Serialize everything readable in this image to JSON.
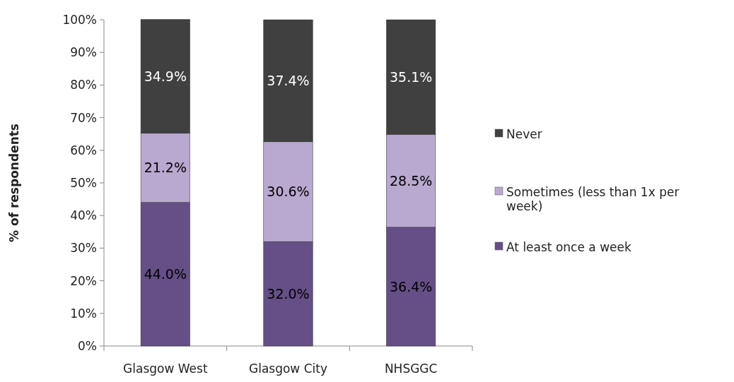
{
  "chart_data": {
    "type": "bar",
    "stacked": true,
    "ylabel": "% of respondents",
    "categories": [
      "Glasgow West",
      "Glasgow City",
      "NHSGGC"
    ],
    "series": [
      {
        "name": "At least once a week",
        "color": "#654f86",
        "values": [
          44.0,
          32.0,
          36.4
        ],
        "value_labels": [
          "44.0%",
          "32.0%",
          "36.4%"
        ]
      },
      {
        "name": "Sometimes (less than 1x per week)",
        "color": "#b9a8cf",
        "values": [
          21.2,
          30.6,
          28.5
        ],
        "value_labels": [
          "21.2%",
          "30.6%",
          "28.5%"
        ]
      },
      {
        "name": "Never",
        "color": "#404040",
        "values": [
          34.9,
          37.4,
          35.1
        ],
        "value_labels": [
          "34.9%",
          "37.4%",
          "35.1%"
        ]
      }
    ],
    "ylim": [
      0,
      100
    ],
    "yticks": [
      {
        "value": 0,
        "label": "0%"
      },
      {
        "value": 10,
        "label": "10%"
      },
      {
        "value": 20,
        "label": "20%"
      },
      {
        "value": 30,
        "label": "30%"
      },
      {
        "value": 40,
        "label": "40%"
      },
      {
        "value": 50,
        "label": "50%"
      },
      {
        "value": 60,
        "label": "60%"
      },
      {
        "value": 70,
        "label": "70%"
      },
      {
        "value": 80,
        "label": "80%"
      },
      {
        "value": 90,
        "label": "90%"
      },
      {
        "value": 100,
        "label": "100%"
      }
    ],
    "grid": false,
    "legend": "right"
  }
}
